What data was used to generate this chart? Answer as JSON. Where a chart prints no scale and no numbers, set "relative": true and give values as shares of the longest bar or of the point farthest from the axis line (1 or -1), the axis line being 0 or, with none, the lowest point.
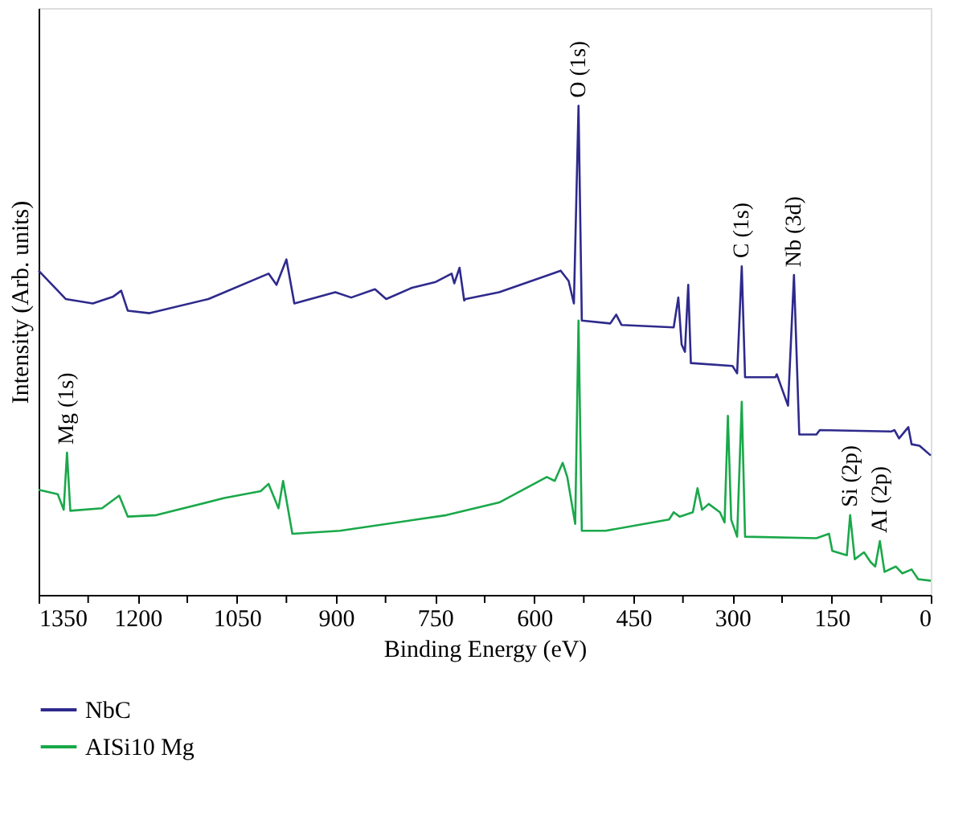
{
  "chart_data": {
    "type": "line",
    "relative": true,
    "xlabel": "Binding Energy (eV)",
    "ylabel": "Intensity (Arb. units)",
    "xlim": [
      1350,
      0
    ],
    "xticks": [
      1350,
      {
        "value": 1275,
        "label": null
      },
      1200,
      {
        "value": 1125,
        "label": null
      },
      1050,
      {
        "value": 975,
        "label": null
      },
      900,
      {
        "value": 825,
        "label": null
      },
      750,
      {
        "value": 675,
        "label": null
      },
      600,
      {
        "value": 525,
        "label": null
      },
      450,
      {
        "value": 375,
        "label": null
      },
      300,
      {
        "value": 225,
        "label": null
      },
      150,
      {
        "value": 75,
        "label": null
      },
      0
    ],
    "legend": "bottom",
    "grid": false,
    "marker": "none",
    "line_style": "solid",
    "series": [
      {
        "name": "NbC",
        "color": "#2e2a8c",
        "x": [
          1350,
          1309,
          1268,
          1237,
          1225,
          1215,
          1182,
          1093,
          1002,
          990,
          975,
          963,
          901,
          877,
          841,
          824,
          785,
          749,
          725,
          721,
          713,
          706,
          704,
          653,
          572,
          560,
          548,
          540,
          533,
          528,
          485,
          476,
          468,
          389,
          382,
          377,
          372,
          367,
          363,
          300,
          293,
          286,
          281,
          235,
          233,
          216,
          207,
          199,
          173,
          168,
          60,
          55,
          48,
          34,
          29,
          17,
          0
        ],
        "values": [
          0.663,
          0.605,
          0.596,
          0.61,
          0.622,
          0.581,
          0.576,
          0.605,
          0.657,
          0.634,
          0.686,
          0.596,
          0.619,
          0.608,
          0.625,
          0.605,
          0.628,
          0.64,
          0.657,
          0.637,
          0.669,
          0.602,
          0.605,
          0.619,
          0.657,
          0.663,
          0.642,
          0.596,
          1.0,
          0.561,
          0.555,
          0.573,
          0.552,
          0.547,
          0.608,
          0.512,
          0.497,
          0.634,
          0.474,
          0.468,
          0.453,
          0.672,
          0.445,
          0.445,
          0.451,
          0.387,
          0.654,
          0.328,
          0.328,
          0.337,
          0.334,
          0.337,
          0.32,
          0.343,
          0.308,
          0.305,
          0.285
        ]
      },
      {
        "name": "AISi10 Mg",
        "color": "#1aa84a",
        "x": [
          1350,
          1321,
          1312,
          1307,
          1302,
          1254,
          1228,
          1215,
          1172,
          1069,
          1014,
          1002,
          987,
          980,
          966,
          894,
          733,
          653,
          581,
          569,
          557,
          550,
          538,
          533,
          528,
          492,
          396,
          389,
          380,
          360,
          353,
          346,
          336,
          319,
          312,
          307,
          302,
          293,
          286,
          281,
          173,
          154,
          149,
          127,
          122,
          115,
          101,
          91,
          84,
          77,
          70,
          53,
          43,
          29,
          19,
          0
        ],
        "values": [
          0.215,
          0.206,
          0.174,
          0.291,
          0.172,
          0.177,
          0.203,
          0.16,
          0.163,
          0.198,
          0.212,
          0.227,
          0.177,
          0.233,
          0.125,
          0.131,
          0.163,
          0.189,
          0.241,
          0.233,
          0.27,
          0.241,
          0.145,
          0.561,
          0.131,
          0.131,
          0.154,
          0.169,
          0.16,
          0.169,
          0.218,
          0.174,
          0.186,
          0.169,
          0.148,
          0.366,
          0.154,
          0.119,
          0.395,
          0.119,
          0.116,
          0.125,
          0.09,
          0.081,
          0.163,
          0.073,
          0.087,
          0.067,
          0.058,
          0.11,
          0.047,
          0.058,
          0.044,
          0.052,
          0.032,
          0.029
        ]
      }
    ],
    "annotations": [
      {
        "text": "O (1s)",
        "x": 533,
        "y": 1.0
      },
      {
        "text": "C (1s)",
        "x": 286,
        "y": 0.672
      },
      {
        "text": "Nb (3d)",
        "x": 207,
        "y": 0.654
      },
      {
        "text": "Mg (1s)",
        "x": 1307,
        "y": 0.291
      },
      {
        "text": "Si (2p)",
        "x": 122,
        "y": 0.163
      },
      {
        "text": "AI (2p)",
        "x": 77,
        "y": 0.11
      }
    ]
  }
}
